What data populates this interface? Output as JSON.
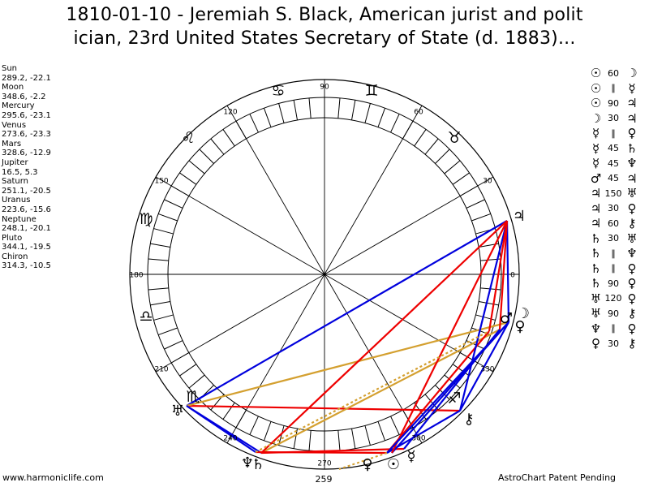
{
  "title": {
    "line1": "1810-01-10 - Jeremiah S. Black, American jurist and polit",
    "line2": "ician, 23rd United States Secretary of State (d. 1883)..."
  },
  "positions": [
    {
      "name": "Sun",
      "coords": "289.2, -22.1"
    },
    {
      "name": "Moon",
      "coords": "348.6, -2.2"
    },
    {
      "name": "Mercury",
      "coords": "295.6, -23.1"
    },
    {
      "name": "Venus",
      "coords": "273.6, -23.3"
    },
    {
      "name": "Mars",
      "coords": "328.6, -12.9"
    },
    {
      "name": "Jupiter",
      "coords": "16.5, 5.3"
    },
    {
      "name": "Saturn",
      "coords": "251.1, -20.5"
    },
    {
      "name": "Uranus",
      "coords": "223.6, -15.6"
    },
    {
      "name": "Neptune",
      "coords": "248.1, -20.1"
    },
    {
      "name": "Pluto",
      "coords": "344.1, -19.5"
    },
    {
      "name": "Chiron",
      "coords": "314.3, -10.5"
    }
  ],
  "degree_labels": [
    "0",
    "30",
    "60",
    "90",
    "120",
    "150",
    "180",
    "210",
    "240",
    "270",
    "300",
    "330"
  ],
  "extra_label": "259",
  "zodiac_signs": [
    {
      "name": "Leo",
      "glyph": "♌"
    },
    {
      "name": "Cancer",
      "glyph": "♋"
    },
    {
      "name": "Gemini",
      "glyph": "♊"
    },
    {
      "name": "Taurus",
      "glyph": "♉"
    },
    {
      "name": "Virgo",
      "glyph": "♍"
    },
    {
      "name": "Libra",
      "glyph": "♎"
    },
    {
      "name": "Scorpio",
      "glyph": "♏"
    },
    {
      "name": "Sagittarius",
      "glyph": "♐"
    }
  ],
  "planet_glyphs": [
    {
      "name": "Jupiter",
      "glyph": "♃"
    },
    {
      "name": "Moon",
      "glyph": "☽"
    },
    {
      "name": "Pluto",
      "glyph": "♀"
    },
    {
      "name": "Mars",
      "glyph": "♂"
    },
    {
      "name": "Chiron",
      "glyph": "⚷"
    },
    {
      "name": "Mercury",
      "glyph": "☿"
    },
    {
      "name": "Sun",
      "glyph": "☉"
    },
    {
      "name": "Venus",
      "glyph": "♀"
    },
    {
      "name": "Saturn",
      "glyph": "♄"
    },
    {
      "name": "Neptune",
      "glyph": "♆"
    },
    {
      "name": "Uranus",
      "glyph": "♅"
    }
  ],
  "aspects": [
    {
      "a": "☉",
      "sym": "60",
      "b": "☽"
    },
    {
      "a": "☉",
      "sym": "∥",
      "b": "☿"
    },
    {
      "a": "☉",
      "sym": "90",
      "b": "♃"
    },
    {
      "a": "☽",
      "sym": "30",
      "b": "♃"
    },
    {
      "a": "☿",
      "sym": "∥",
      "b": "♀"
    },
    {
      "a": "☿",
      "sym": "45",
      "b": "♄"
    },
    {
      "a": "☿",
      "sym": "45",
      "b": "♆"
    },
    {
      "a": "♂",
      "sym": "45",
      "b": "♃"
    },
    {
      "a": "♃",
      "sym": "150",
      "b": "♅"
    },
    {
      "a": "♃",
      "sym": "30",
      "b": "♀"
    },
    {
      "a": "♃",
      "sym": "60",
      "b": "⚷"
    },
    {
      "a": "♄",
      "sym": "30",
      "b": "♅"
    },
    {
      "a": "♄",
      "sym": "∥",
      "b": "♆"
    },
    {
      "a": "♄",
      "sym": "∥",
      "b": "♀"
    },
    {
      "a": "♄",
      "sym": "90",
      "b": "♀"
    },
    {
      "a": "♅",
      "sym": "120",
      "b": "♀"
    },
    {
      "a": "♅",
      "sym": "90",
      "b": "⚷"
    },
    {
      "a": "♆",
      "sym": "∥",
      "b": "♀"
    },
    {
      "a": "♀",
      "sym": "30",
      "b": "⚷"
    }
  ],
  "footer": {
    "left": "www.harmoniclife.com",
    "right": "AstroChart Patent Pending"
  },
  "colors": {
    "red": "#ee0000",
    "blue": "#0000dd",
    "gold": "#d4a030",
    "black": "#000000"
  }
}
